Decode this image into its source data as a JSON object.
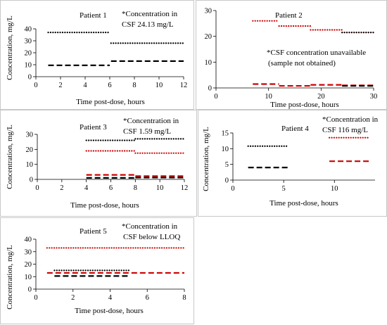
{
  "chart_data": [
    {
      "type": "line",
      "title": "Patient 1",
      "annotation": [
        "*Concentration in",
        "CSF 24.13 mg/L"
      ],
      "xlabel": "Time post-dose, hours",
      "ylabel": "Concentration, mg/L",
      "xlim": [
        0,
        12
      ],
      "ylim": [
        0,
        40
      ],
      "xticks": [
        0,
        2,
        4,
        6,
        8,
        10,
        12
      ],
      "yticks": [
        0,
        10,
        20,
        30,
        40
      ],
      "series": [
        {
          "style": "dotted",
          "color": "#000000",
          "segments": [
            [
              1,
              6,
              37
            ],
            [
              6.1,
              12,
              28
            ]
          ]
        },
        {
          "style": "dashed",
          "color": "#000000",
          "segments": [
            [
              1,
              6,
              9.5
            ],
            [
              6.1,
              12,
              13
            ]
          ]
        }
      ]
    },
    {
      "type": "line",
      "title": "Patient 2",
      "annotation": [
        "*CSF concentration unavailable",
        "(sample not obtained)"
      ],
      "xlabel": "Time post-dose, hours",
      "ylabel": "",
      "xlim": [
        0,
        30
      ],
      "ylim": [
        0,
        30
      ],
      "xticks": [
        0,
        10,
        20,
        30
      ],
      "yticks": [
        0,
        10,
        20,
        30
      ],
      "series": [
        {
          "style": "dotted",
          "color": "#cc0000",
          "segments": [
            [
              7,
              12,
              26
            ],
            [
              12,
              18,
              24
            ],
            [
              18,
              24,
              22.5
            ],
            [
              24,
              30,
              21.5
            ]
          ]
        },
        {
          "style": "dotted",
          "color": "#000000",
          "segments": [
            [
              24,
              30,
              21.5
            ]
          ]
        },
        {
          "style": "dashed",
          "color": "#cc0000",
          "segments": [
            [
              7,
              12,
              1.5
            ],
            [
              12,
              18,
              0.8
            ],
            [
              18,
              24,
              1.2
            ],
            [
              24,
              30,
              1.0
            ]
          ]
        },
        {
          "style": "dashed",
          "color": "#000000",
          "segments": [
            [
              24,
              30,
              0.8
            ]
          ]
        }
      ]
    },
    {
      "type": "line",
      "title": "Patient 3",
      "annotation": [
        "*Concentration in",
        "CSF 1.59  mg/L"
      ],
      "xlabel": "Time post-dose, hours",
      "ylabel": "Concentration, mg/L",
      "xlim": [
        0,
        12
      ],
      "ylim": [
        0,
        30
      ],
      "xticks": [
        0,
        2,
        4,
        6,
        8,
        10,
        12
      ],
      "yticks": [
        0,
        10,
        20,
        30
      ],
      "series": [
        {
          "style": "dotted",
          "color": "#000000",
          "segments": [
            [
              4,
              8,
              26
            ],
            [
              8,
              12,
              27
            ]
          ]
        },
        {
          "style": "dotted",
          "color": "#cc0000",
          "segments": [
            [
              4,
              8,
              19
            ],
            [
              8,
              12,
              17.5
            ]
          ]
        },
        {
          "style": "dashed",
          "color": "#cc0000",
          "segments": [
            [
              4,
              8,
              3
            ],
            [
              8,
              12,
              2.2
            ]
          ]
        },
        {
          "style": "dashed",
          "color": "#000000",
          "segments": [
            [
              4,
              8,
              1
            ],
            [
              8,
              12,
              1.2
            ]
          ]
        }
      ]
    },
    {
      "type": "line",
      "title": "Patient 4",
      "annotation": [
        "*Concentration in",
        "CSF 116 mg/L"
      ],
      "xlabel": "Time post-dose, hours",
      "ylabel": "Concentration, mg/L",
      "xlim": [
        0,
        14
      ],
      "ylim": [
        0,
        15
      ],
      "xticks": [
        0,
        5,
        10
      ],
      "yticks": [
        0,
        5,
        10,
        15
      ],
      "series": [
        {
          "style": "dotted",
          "color": "#000000",
          "segments": [
            [
              1.5,
              5.5,
              10.8
            ]
          ]
        },
        {
          "style": "dashed",
          "color": "#000000",
          "segments": [
            [
              1.5,
              5.5,
              4
            ]
          ]
        },
        {
          "style": "dotted",
          "color": "#cc0000",
          "segments": [
            [
              9.5,
              13.5,
              13.5
            ]
          ]
        },
        {
          "style": "dashed",
          "color": "#cc0000",
          "segments": [
            [
              9.5,
              13.5,
              6
            ]
          ]
        }
      ]
    },
    {
      "type": "line",
      "title": "Patient 5",
      "annotation": [
        "*Concentration in",
        "CSF below LLOQ"
      ],
      "xlabel": "Time post-dose, hours",
      "ylabel": "Concentration, mg/L",
      "xlim": [
        0,
        8
      ],
      "ylim": [
        0,
        40
      ],
      "xticks": [
        0,
        2,
        4,
        6,
        8
      ],
      "yticks": [
        0,
        10,
        20,
        30,
        40
      ],
      "series": [
        {
          "style": "dotted",
          "color": "#cc0000",
          "segments": [
            [
              0.6,
              8,
              33
            ]
          ]
        },
        {
          "style": "dotted",
          "color": "#000000",
          "segments": [
            [
              1,
              5,
              15
            ]
          ]
        },
        {
          "style": "dashed",
          "color": "#cc0000",
          "segments": [
            [
              0.6,
              8,
              13
            ]
          ]
        },
        {
          "style": "dashed",
          "color": "#000000",
          "segments": [
            [
              1,
              5,
              10.5
            ]
          ]
        }
      ]
    }
  ]
}
